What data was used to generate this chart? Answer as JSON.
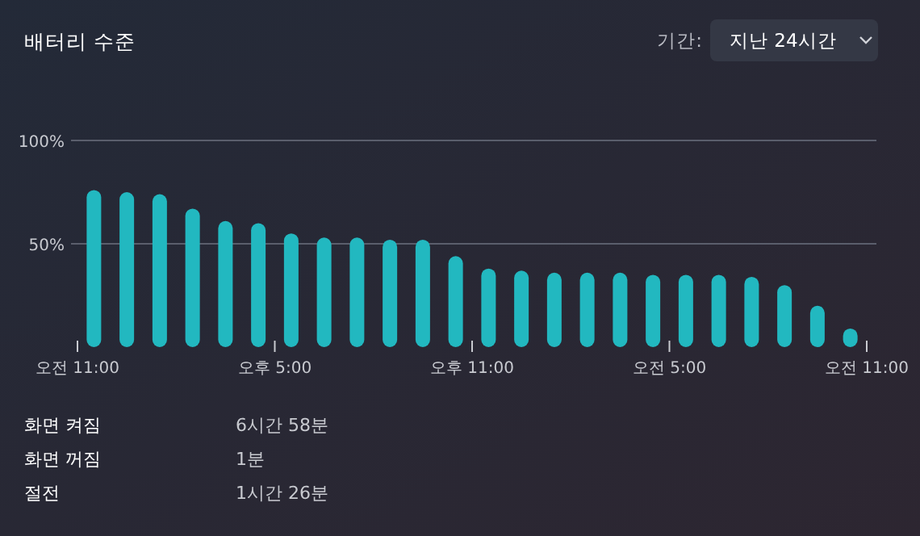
{
  "chart_data": {
    "type": "bar",
    "title": "배터리 수준",
    "categories": [
      null,
      null,
      null,
      null,
      null,
      null,
      null,
      null,
      null,
      null,
      null,
      null,
      null,
      null,
      null,
      null,
      null,
      null,
      null,
      null,
      null,
      null,
      null,
      null
    ],
    "values": [
      76,
      75,
      74,
      67,
      61,
      60,
      55,
      53,
      53,
      52,
      52,
      44,
      38,
      37,
      36,
      36,
      36,
      35,
      35,
      35,
      34,
      30,
      20,
      9
    ],
    "color": "#22b8c0",
    "ylim": [
      0,
      100
    ],
    "yticks": [
      {
        "value": 50,
        "label": "50%"
      },
      {
        "value": 100,
        "label": "100%"
      }
    ],
    "grid": "y",
    "annotations": [
      "기간:",
      "지난 24시간",
      "오전 11:00",
      "오후 5:00",
      "오후 11:00",
      "오전 5:00",
      "오전 11:00",
      "화면 켜짐",
      "6시간 58분",
      "화면 꺼짐",
      "1분",
      "절전",
      "1시간 26분"
    ]
  }
}
